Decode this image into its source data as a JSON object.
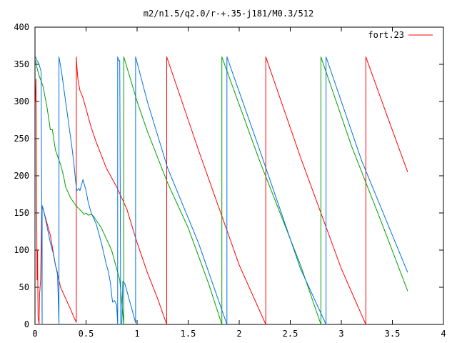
{
  "chart_data": {
    "type": "line",
    "title": "m2/n1.5/q2.0/r-+.35-j181/M0.3/512",
    "xlabel": "",
    "ylabel": "",
    "xlim": [
      0,
      4
    ],
    "ylim": [
      0,
      400
    ],
    "xticks": [
      0,
      0.5,
      1,
      1.5,
      2,
      2.5,
      3,
      3.5,
      4
    ],
    "xtick_labels": [
      "0",
      "0.5",
      "1",
      "1.5",
      "2",
      "2.5",
      "3",
      "3.5",
      "4"
    ],
    "yticks": [
      0,
      50,
      100,
      150,
      200,
      250,
      300,
      350,
      400
    ],
    "ytick_labels": [
      "0",
      "50",
      "100",
      "150",
      "200",
      "250",
      "300",
      "350",
      "400"
    ],
    "grid": false,
    "legend": {
      "position": "top-right",
      "entries": [
        "fort.23"
      ]
    },
    "series": [
      {
        "name": "fort.23",
        "color": "#ff0000",
        "points": [
          [
            0.005,
            300
          ],
          [
            0.01,
            330
          ],
          [
            0.015,
            200
          ],
          [
            0.02,
            60
          ],
          [
            0.025,
            100
          ],
          [
            0.03,
            10
          ],
          [
            0.04,
            0
          ],
          [
            0.045,
            40
          ],
          [
            0.055,
            60
          ],
          [
            0.065,
            150
          ],
          [
            0.075,
            158
          ],
          [
            0.1,
            145
          ],
          [
            0.15,
            120
          ],
          [
            0.2,
            80
          ],
          [
            0.25,
            50
          ],
          [
            0.3,
            35
          ],
          [
            0.35,
            20
          ],
          [
            0.38,
            10
          ],
          [
            0.405,
            3
          ],
          [
            0.405,
            360
          ],
          [
            0.41,
            348
          ],
          [
            0.42,
            330
          ],
          [
            0.44,
            315
          ],
          [
            0.47,
            305
          ],
          [
            0.5,
            290
          ],
          [
            0.55,
            265
          ],
          [
            0.6,
            245
          ],
          [
            0.7,
            210
          ],
          [
            0.8,
            185
          ],
          [
            0.85,
            170
          ],
          [
            0.9,
            155
          ],
          [
            1.0,
            110
          ],
          [
            1.1,
            70
          ],
          [
            1.2,
            35
          ],
          [
            1.29,
            0
          ],
          [
            1.29,
            360
          ],
          [
            1.6,
            235
          ],
          [
            2.0,
            80
          ],
          [
            2.26,
            0
          ],
          [
            2.26,
            360
          ],
          [
            2.6,
            225
          ],
          [
            3.0,
            75
          ],
          [
            3.24,
            0
          ],
          [
            3.24,
            360
          ],
          [
            3.45,
            280
          ],
          [
            3.65,
            205
          ]
        ]
      },
      {
        "name": "",
        "color": "#00a000",
        "points": [
          [
            0.005,
            355
          ],
          [
            0.02,
            345
          ],
          [
            0.04,
            335
          ],
          [
            0.08,
            320
          ],
          [
            0.1,
            305
          ],
          [
            0.12,
            290
          ],
          [
            0.15,
            262
          ],
          [
            0.17,
            262
          ],
          [
            0.2,
            235
          ],
          [
            0.25,
            215
          ],
          [
            0.28,
            200
          ],
          [
            0.3,
            185
          ],
          [
            0.35,
            170
          ],
          [
            0.4,
            160
          ],
          [
            0.45,
            153
          ],
          [
            0.47,
            150
          ],
          [
            0.48,
            148
          ],
          [
            0.5,
            150
          ],
          [
            0.52,
            147
          ],
          [
            0.55,
            148
          ],
          [
            0.57,
            146
          ],
          [
            0.6,
            140
          ],
          [
            0.65,
            130
          ],
          [
            0.7,
            115
          ],
          [
            0.75,
            100
          ],
          [
            0.78,
            85
          ],
          [
            0.8,
            75
          ],
          [
            0.83,
            60
          ],
          [
            0.87,
            0
          ],
          [
            0.87,
            360
          ],
          [
            1.0,
            300
          ],
          [
            1.1,
            260
          ],
          [
            1.3,
            190
          ],
          [
            1.5,
            130
          ],
          [
            1.7,
            55
          ],
          [
            1.83,
            0
          ],
          [
            1.83,
            360
          ],
          [
            2.2,
            220
          ],
          [
            2.6,
            80
          ],
          [
            2.8,
            0
          ],
          [
            2.8,
            360
          ],
          [
            3.1,
            240
          ],
          [
            3.4,
            135
          ],
          [
            3.65,
            45
          ]
        ]
      },
      {
        "name": "",
        "color": "#0070e0",
        "points": [
          [
            0.005,
            360
          ],
          [
            0.02,
            355
          ],
          [
            0.04,
            350
          ],
          [
            0.06,
            340
          ],
          [
            0.07,
            0
          ],
          [
            0.07,
            160
          ],
          [
            0.09,
            150
          ],
          [
            0.12,
            130
          ],
          [
            0.15,
            110
          ],
          [
            0.18,
            95
          ],
          [
            0.2,
            80
          ],
          [
            0.22,
            70
          ],
          [
            0.235,
            0
          ],
          [
            0.235,
            360
          ],
          [
            0.26,
            340
          ],
          [
            0.28,
            320
          ],
          [
            0.3,
            300
          ],
          [
            0.32,
            280
          ],
          [
            0.34,
            260
          ],
          [
            0.36,
            240
          ],
          [
            0.38,
            218
          ],
          [
            0.4,
            190
          ],
          [
            0.41,
            180
          ],
          [
            0.43,
            183
          ],
          [
            0.44,
            180
          ],
          [
            0.46,
            190
          ],
          [
            0.47,
            195
          ],
          [
            0.48,
            190
          ],
          [
            0.49,
            185
          ],
          [
            0.5,
            180
          ],
          [
            0.52,
            165
          ],
          [
            0.55,
            150
          ],
          [
            0.6,
            135
          ],
          [
            0.65,
            110
          ],
          [
            0.7,
            80
          ],
          [
            0.72,
            70
          ],
          [
            0.74,
            55
          ],
          [
            0.75,
            40
          ],
          [
            0.76,
            30
          ],
          [
            0.78,
            32
          ],
          [
            0.8,
            26
          ],
          [
            0.81,
            0
          ],
          [
            0.81,
            360
          ],
          [
            0.82,
            355
          ],
          [
            0.83,
            355
          ],
          [
            0.84,
            0
          ],
          [
            0.85,
            0
          ],
          [
            0.86,
            58
          ],
          [
            0.88,
            55
          ],
          [
            0.9,
            45
          ],
          [
            0.94,
            25
          ],
          [
            0.97,
            10
          ],
          [
            0.985,
            2
          ],
          [
            0.985,
            360
          ],
          [
            1.1,
            300
          ],
          [
            1.3,
            210
          ],
          [
            1.6,
            110
          ],
          [
            1.88,
            0
          ],
          [
            1.88,
            360
          ],
          [
            2.2,
            235
          ],
          [
            2.6,
            75
          ],
          [
            2.85,
            0
          ],
          [
            2.85,
            360
          ],
          [
            3.2,
            220
          ],
          [
            3.65,
            70
          ]
        ]
      }
    ]
  }
}
